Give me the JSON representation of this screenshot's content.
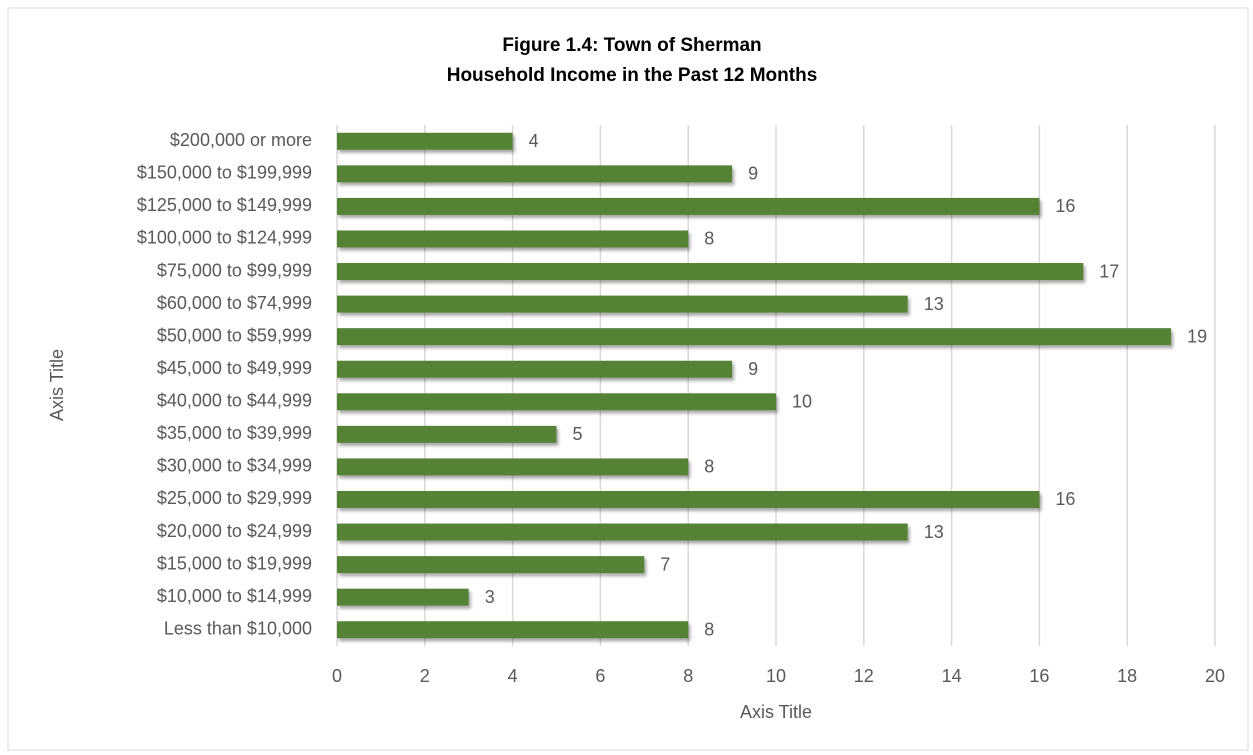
{
  "chart_data": {
    "type": "bar",
    "orientation": "horizontal",
    "title": "Figure 1.4: Town of Sherman",
    "subtitle": "Household Income in the Past 12 Months",
    "x_label": "Axis Title",
    "y_label": "Axis Title",
    "categories": [
      "$200,000 or more",
      "$150,000 to $199,999",
      "$125,000 to $149,999",
      "$100,000 to $124,999",
      "$75,000 to $99,999",
      "$60,000 to $74,999",
      "$50,000 to $59,999",
      "$45,000 to $49,999",
      "$40,000 to $44,999",
      "$35,000 to $39,999",
      "$30,000 to $34,999",
      "$25,000 to $29,999",
      "$20,000 to $24,999",
      "$15,000 to $19,999",
      "$10,000 to $14,999",
      "Less than $10,000"
    ],
    "values": [
      4,
      9,
      16,
      8,
      17,
      13,
      19,
      9,
      10,
      5,
      8,
      16,
      13,
      7,
      3,
      8
    ],
    "color": "#548235",
    "xlim": [
      0,
      20
    ],
    "xticks": [
      0,
      2,
      4,
      6,
      8,
      10,
      12,
      14,
      16,
      18,
      20
    ],
    "grid": true
  }
}
